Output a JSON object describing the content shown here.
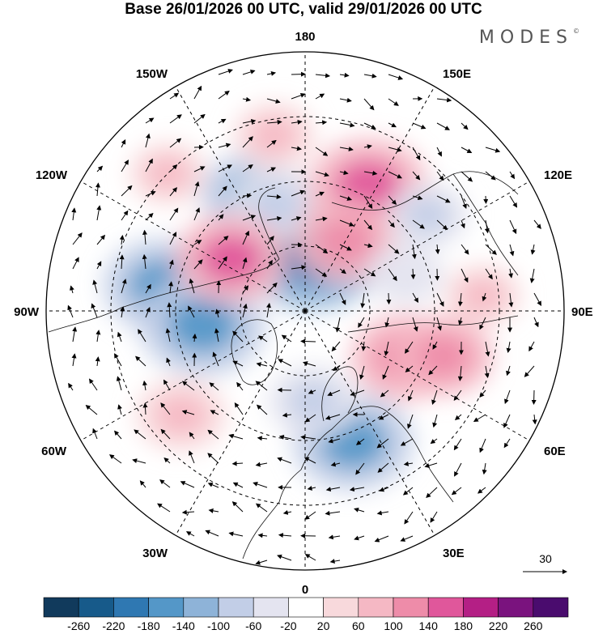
{
  "title": "Base 26/01/2026 00 UTC, valid 29/01/2026 00 UTC",
  "brand": "MODES",
  "brand_mark": "©",
  "longitude_labels": {
    "top": "180",
    "bottom": "0",
    "left": "90W",
    "right": "90E",
    "upper_left_1": "150W",
    "upper_left_2": "120W",
    "upper_right_1": "150E",
    "upper_right_2": "120E",
    "lower_left_1": "60W",
    "lower_left_2": "30W",
    "lower_right_1": "60E",
    "lower_right_2": "30E"
  },
  "reference_vector": {
    "value": "30"
  },
  "colorbar": {
    "labels": [
      "-260",
      "-220",
      "-180",
      "-140",
      "-100",
      "-60",
      "-20",
      "20",
      "60",
      "100",
      "140",
      "180",
      "220",
      "260"
    ],
    "colors": [
      "#113a5c",
      "#175a8a",
      "#2f78b2",
      "#5497c8",
      "#8eb3d8",
      "#c2cee7",
      "#e4e4f0",
      "#ffffff",
      "#f8d9dc",
      "#f5b8c4",
      "#ee8ca9",
      "#e0579b",
      "#b41f85",
      "#7a137e",
      "#4a0c6e"
    ]
  },
  "anomaly_cells": [
    {
      "lon": 20,
      "lat": 47,
      "value": -160
    },
    {
      "lon": 5,
      "lat": 62,
      "value": -90
    },
    {
      "lon": -100,
      "lat": 45,
      "value": -150
    },
    {
      "lon": -82,
      "lat": 58,
      "value": -170
    },
    {
      "lon": 172,
      "lat": 72,
      "value": -200
    },
    {
      "lon": -155,
      "lat": 50,
      "value": -110
    },
    {
      "lon": -165,
      "lat": 56,
      "value": -90
    },
    {
      "lon": 153,
      "lat": 47,
      "value": 160
    },
    {
      "lon": 150,
      "lat": 65,
      "value": 120
    },
    {
      "lon": -125,
      "lat": 62,
      "value": 140
    },
    {
      "lon": 65,
      "lat": 56,
      "value": 130
    },
    {
      "lon": 72,
      "lat": 45,
      "value": 110
    },
    {
      "lon": -50,
      "lat": 40,
      "value": 90
    },
    {
      "lon": 110,
      "lat": 57,
      "value": -60
    },
    {
      "lon": 128,
      "lat": 42,
      "value": -70
    },
    {
      "lon": -170,
      "lat": 35,
      "value": 70
    },
    {
      "lon": -135,
      "lat": 30,
      "value": 60
    },
    {
      "lon": 95,
      "lat": 35,
      "value": 60
    }
  ]
}
